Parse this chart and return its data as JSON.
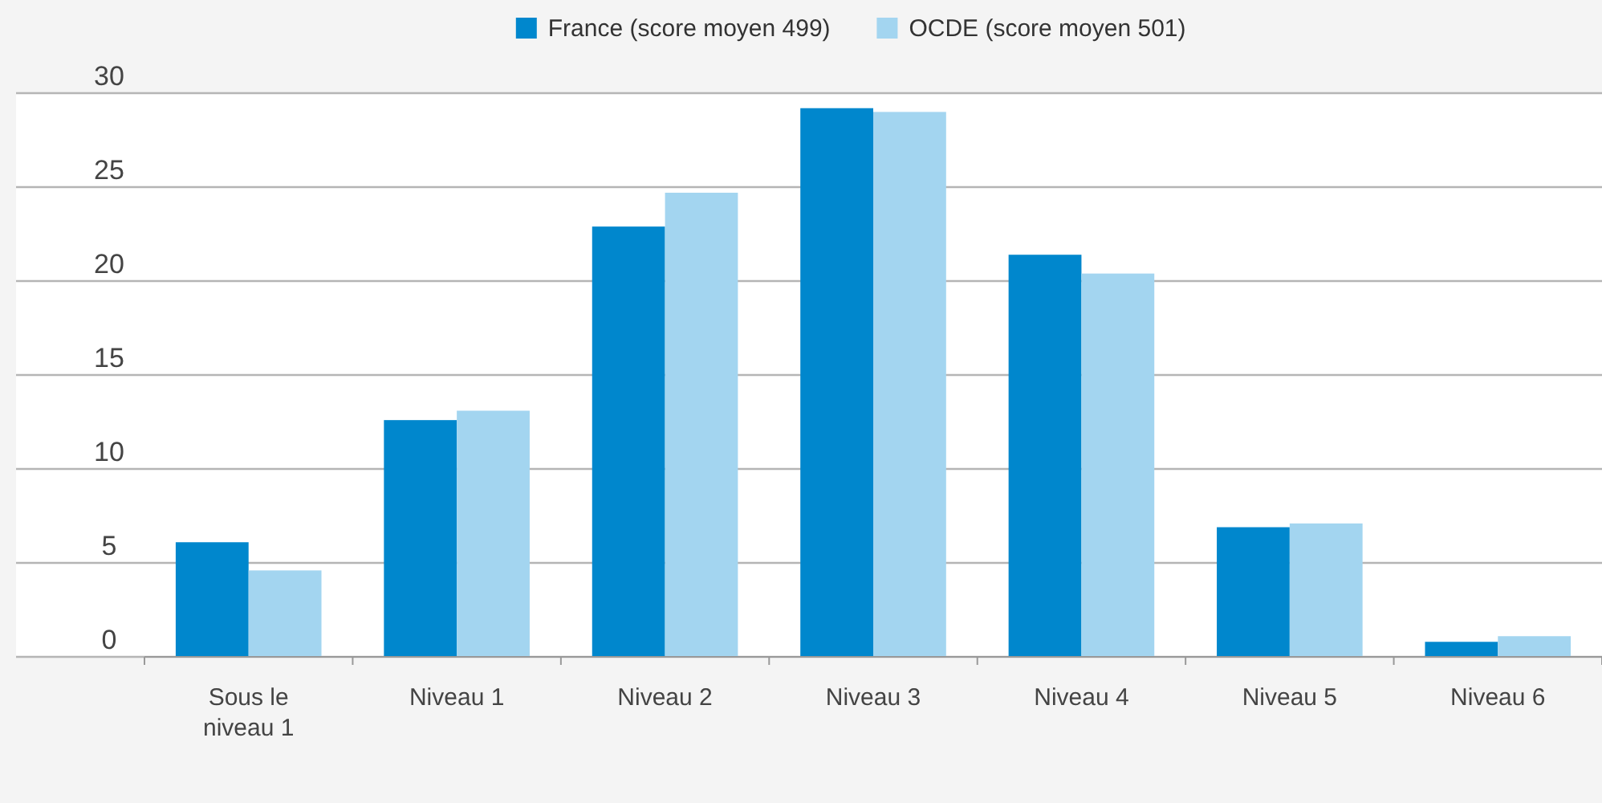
{
  "chart_data": {
    "type": "bar",
    "categories": [
      "Sous le niveau 1",
      "Niveau 1",
      "Niveau 2",
      "Niveau 3",
      "Niveau 4",
      "Niveau 5",
      "Niveau 6"
    ],
    "series": [
      {
        "name": "France (score moyen 499)",
        "color": "#0087cd",
        "values": [
          6.1,
          12.6,
          22.9,
          29.2,
          21.4,
          6.9,
          0.8
        ]
      },
      {
        "name": "OCDE (score moyen 501)",
        "color": "#a3d5f0",
        "values": [
          4.6,
          13.1,
          24.7,
          29.0,
          20.4,
          7.1,
          1.1
        ]
      }
    ],
    "ylim": [
      0,
      30
    ],
    "yticks": [
      0,
      5,
      10,
      15,
      20,
      25,
      30
    ],
    "grid": "y",
    "legend": "top"
  }
}
